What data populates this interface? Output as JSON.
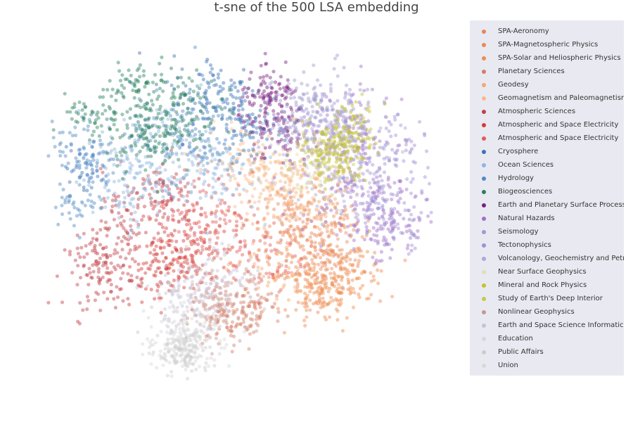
{
  "chart_data": {
    "type": "scatter",
    "title": "t-sne of the 500 LSA embedding",
    "xlabel": "",
    "ylabel": "",
    "grid": false,
    "axes_visible": false,
    "xlim": [
      -60,
      60
    ],
    "ylim": [
      -60,
      60
    ],
    "legend_position": "right",
    "marker_opacity": 0.45,
    "series": [
      {
        "name": "SPA-Aeronomy",
        "color": "#e8845e",
        "clusters": [
          [
            22,
            -14,
            7,
            120
          ],
          [
            16,
            -2,
            6,
            60
          ]
        ]
      },
      {
        "name": "SPA-Magnetospheric Physics",
        "color": "#e98a54",
        "clusters": [
          [
            28,
            -20,
            6,
            110
          ],
          [
            30,
            -6,
            6,
            70
          ]
        ]
      },
      {
        "name": "SPA-Solar and Heliospheric Physics",
        "color": "#f08c4e",
        "clusters": [
          [
            27,
            -30,
            5,
            110
          ],
          [
            36,
            -22,
            5,
            70
          ]
        ]
      },
      {
        "name": "Planetary Sciences",
        "color": "#d27f66",
        "clusters": [
          [
            -3,
            -38,
            5,
            90
          ],
          [
            6,
            -34,
            5,
            70
          ]
        ]
      },
      {
        "name": "Geodesy",
        "color": "#f6a86c",
        "clusters": [
          [
            18,
            6,
            7,
            110
          ],
          [
            12,
            -22,
            6,
            60
          ]
        ]
      },
      {
        "name": "Geomagnetism and Paleomagnetism",
        "color": "#f8bb88",
        "clusters": [
          [
            14,
            8,
            7,
            100
          ],
          [
            4,
            16,
            6,
            70
          ]
        ]
      },
      {
        "name": "Atmospheric Sciences",
        "color": "#c2414a",
        "clusters": [
          [
            -38,
            -22,
            6,
            120
          ],
          [
            -30,
            -6,
            8,
            110
          ],
          [
            -20,
            4,
            6,
            70
          ]
        ]
      },
      {
        "name": "Atmospheric and Space Electricity",
        "color": "#d43a32",
        "clusters": [
          [
            -12,
            -12,
            7,
            120
          ],
          [
            -22,
            -22,
            6,
            90
          ]
        ]
      },
      {
        "name": "Atmospheric and Space Electricity",
        "color": "#e45a5a",
        "clusters": [
          [
            -8,
            -2,
            7,
            90
          ],
          [
            10,
            -18,
            6,
            60
          ]
        ]
      },
      {
        "name": "Cryosphere",
        "color": "#3a74b6",
        "clusters": [
          [
            -4,
            38,
            7,
            110
          ],
          [
            6,
            28,
            6,
            80
          ],
          [
            -44,
            12,
            4,
            40
          ]
        ]
      },
      {
        "name": "Ocean Sciences",
        "color": "#8fb6e0",
        "clusters": [
          [
            -22,
            20,
            8,
            120
          ],
          [
            -32,
            8,
            7,
            100
          ],
          [
            -6,
            12,
            7,
            80
          ]
        ]
      },
      {
        "name": "Hydrology",
        "color": "#5289c4",
        "clusters": [
          [
            -14,
            26,
            8,
            120
          ],
          [
            -44,
            20,
            5,
            70
          ],
          [
            -46,
            2,
            4,
            40
          ]
        ]
      },
      {
        "name": "Biogeosciences",
        "color": "#2a8060",
        "clusters": [
          [
            -18,
            34,
            7,
            140
          ],
          [
            -26,
            24,
            6,
            90
          ],
          [
            -42,
            30,
            4,
            50
          ],
          [
            -30,
            42,
            4,
            50
          ]
        ]
      },
      {
        "name": "Earth and Planetary Surface Processes",
        "color": "#7b2181",
        "clusters": [
          [
            12,
            36,
            5,
            120
          ],
          [
            14,
            24,
            5,
            60
          ]
        ]
      },
      {
        "name": "Natural Hazards",
        "color": "#a070c8",
        "clusters": [
          [
            40,
            8,
            9,
            150
          ],
          [
            32,
            26,
            8,
            90
          ],
          [
            46,
            -8,
            6,
            80
          ]
        ]
      },
      {
        "name": "Seismology",
        "color": "#9e9ad0",
        "clusters": [
          [
            30,
            30,
            8,
            130
          ],
          [
            24,
            34,
            6,
            70
          ]
        ]
      },
      {
        "name": "Tectonophysics",
        "color": "#a090d4",
        "clusters": [
          [
            44,
            14,
            8,
            130
          ],
          [
            48,
            -2,
            6,
            70
          ]
        ]
      },
      {
        "name": "Volcanology, Geochemistry and Petrology",
        "color": "#b2a6d8",
        "clusters": [
          [
            32,
            16,
            8,
            110
          ],
          [
            22,
            28,
            6,
            60
          ]
        ]
      },
      {
        "name": "Near Surface Geophysics",
        "color": "#e0e0b4",
        "clusters": [
          [
            26,
            12,
            6,
            60
          ]
        ]
      },
      {
        "name": "Mineral and Rock Physics",
        "color": "#c4c22c",
        "clusters": [
          [
            32,
            20,
            5,
            140
          ],
          [
            36,
            30,
            4,
            40
          ]
        ]
      },
      {
        "name": "Study of Earth's Deep Interior",
        "color": "#c8c94a",
        "clusters": [
          [
            26,
            16,
            5,
            70
          ]
        ]
      },
      {
        "name": "Nonlinear Geophysics",
        "color": "#c59898",
        "clusters": [
          [
            -4,
            -30,
            6,
            90
          ]
        ]
      },
      {
        "name": "Earth and Space Science Informatics",
        "color": "#c6c4da",
        "clusters": [
          [
            -14,
            -32,
            6,
            80
          ],
          [
            -4,
            -22,
            7,
            50
          ]
        ]
      },
      {
        "name": "Education",
        "color": "#d6d6dc",
        "clusters": [
          [
            -16,
            -46,
            5,
            110
          ]
        ]
      },
      {
        "name": "Public Affairs",
        "color": "#cccccc",
        "clusters": [
          [
            -14,
            -50,
            4,
            90
          ]
        ]
      },
      {
        "name": "Union",
        "color": "#d8d8d8",
        "clusters": [
          [
            -10,
            -42,
            5,
            80
          ]
        ]
      }
    ]
  }
}
